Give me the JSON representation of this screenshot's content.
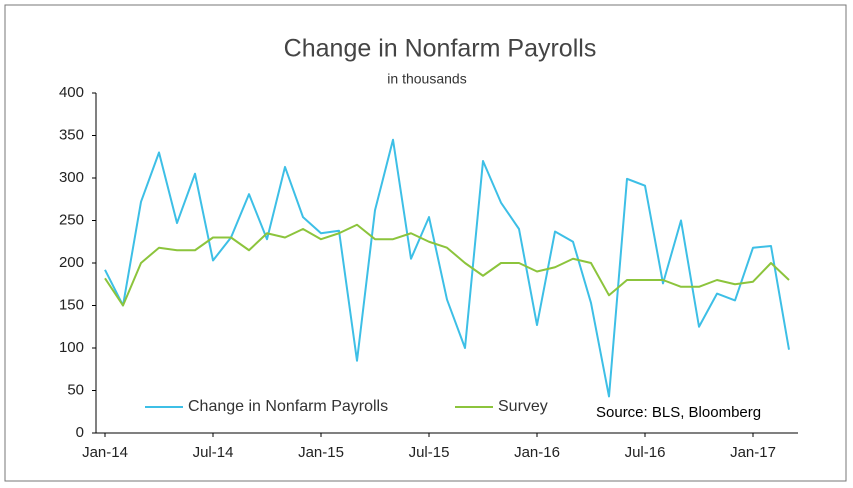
{
  "chart_data": {
    "type": "line",
    "title": "Change in Nonfarm Payrolls",
    "subtitle": "in thousands",
    "annotation": "Source: BLS, Bloomberg",
    "categories": [
      "Jan-14",
      null,
      null,
      null,
      null,
      null,
      "Jul-14",
      null,
      null,
      null,
      null,
      null,
      "Jan-15",
      null,
      null,
      null,
      null,
      null,
      "Jul-15",
      null,
      null,
      null,
      null,
      null,
      "Jan-16",
      null,
      null,
      null,
      null,
      null,
      "Jul-16",
      null,
      null,
      null,
      null,
      null,
      "Jan-17",
      null,
      null
    ],
    "series": [
      {
        "name": "Change in Nonfarm Payrolls",
        "color": "#3dbfe6",
        "values": [
          192,
          150,
          272,
          330,
          247,
          305,
          203,
          230,
          281,
          228,
          313,
          254,
          235,
          238,
          85,
          262,
          345,
          205,
          254,
          157,
          100,
          320,
          271,
          240,
          127,
          237,
          225,
          153,
          43,
          299,
          291,
          176,
          250,
          125,
          164,
          156,
          218,
          220,
          98
        ]
      },
      {
        "name": "Survey",
        "color": "#8cc43c",
        "values": [
          182,
          150,
          200,
          218,
          215,
          215,
          230,
          230,
          215,
          235,
          230,
          240,
          228,
          235,
          245,
          228,
          228,
          235,
          225,
          218,
          200,
          185,
          200,
          200,
          190,
          195,
          205,
          200,
          162,
          180,
          180,
          180,
          172,
          172,
          180,
          175,
          178,
          200,
          180
        ]
      }
    ],
    "ylim": [
      0,
      400
    ],
    "yticks": [
      0,
      50,
      100,
      150,
      200,
      250,
      300,
      350,
      400
    ],
    "grid": false,
    "legend": "bottom"
  }
}
